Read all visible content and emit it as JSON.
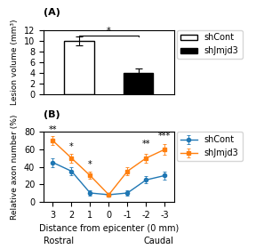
{
  "chart_data": [
    {
      "type": "bar",
      "title": "(A)",
      "categories": [
        "shCont",
        "shJmjd3"
      ],
      "values": [
        10.0,
        4.0
      ],
      "errors": [
        0.8,
        0.8
      ],
      "colors": [
        "white",
        "black"
      ],
      "ylabel": "Lesion volume (mm³)",
      "ylim": [
        0,
        12
      ],
      "yticks": [
        0,
        2,
        4,
        6,
        8,
        10,
        12
      ],
      "tick_labels": "y",
      "legend": "upper left",
      "annotations": [
        {
          "text": "*",
          "x": [
            "shCont",
            "shJmjd3"
          ],
          "y": 11
        }
      ]
    },
    {
      "type": "line",
      "title": "(B)",
      "x": [
        3,
        2,
        1,
        0,
        -1,
        -2,
        -3
      ],
      "series": [
        {
          "name": "shCont",
          "marker": "circle",
          "values": [
            45,
            35,
            10,
            8,
            10,
            25,
            30
          ],
          "errors": [
            5,
            5,
            3,
            2,
            3,
            4,
            5
          ]
        },
        {
          "name": "shJmjd3",
          "marker": "square",
          "values": [
            70,
            50,
            30,
            8,
            35,
            50,
            60
          ],
          "errors": [
            5,
            5,
            4,
            2,
            5,
            5,
            6
          ]
        }
      ],
      "xlabel": "Distance from epicenter (0 mm)",
      "ylabel": "Relative axon number (%)",
      "x_end_labels": [
        "Rostral",
        "Caudal"
      ],
      "xlim": [
        3.5,
        -3.5
      ],
      "xticks": [
        3,
        2,
        1,
        0,
        -1,
        -2,
        -3
      ],
      "ylim": [
        0,
        80
      ],
      "yticks": [
        0,
        20,
        40,
        60,
        80
      ],
      "legend": "upper left",
      "annotations": [
        {
          "text": "**",
          "x": 3,
          "y": 72
        },
        {
          "text": "*",
          "x": 2,
          "y": 52
        },
        {
          "text": "*",
          "x": 1,
          "y": 32
        },
        {
          "text": "**",
          "x": -2,
          "y": 55
        },
        {
          "text": "***",
          "x": -3,
          "y": 65
        }
      ]
    }
  ]
}
